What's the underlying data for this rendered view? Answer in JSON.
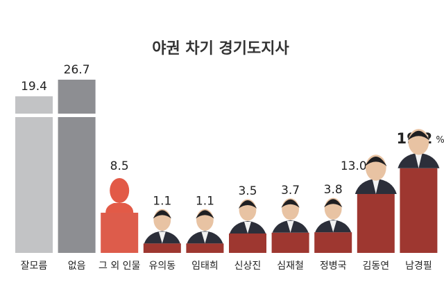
{
  "chart_data": {
    "type": "bar",
    "title": "야권 차기 경기도지사",
    "categories": [
      "잘모름",
      "없음",
      "그 외 인물",
      "유의동",
      "임태희",
      "신상진",
      "심재철",
      "정병국",
      "김동연",
      "남경필"
    ],
    "values": [
      19.4,
      26.7,
      8.5,
      1.1,
      1.1,
      3.5,
      3.7,
      3.8,
      13.0,
      19.2
    ],
    "value_labels": [
      "19.4",
      "26.7",
      "8.5",
      "1.1",
      "1.1",
      "3.5",
      "3.7",
      "3.8",
      "13.0",
      "19.2"
    ],
    "highlight_unit": "%",
    "highlight_index": 9,
    "axis_break": true,
    "grid": false,
    "legend": "none",
    "colors": {
      "undecided": "#c2c3c5",
      "none": "#8d8e92",
      "others": "#dd5c4b",
      "candidate": "#9e3730",
      "silhouette": "#e25a47",
      "text": "#222222"
    }
  }
}
